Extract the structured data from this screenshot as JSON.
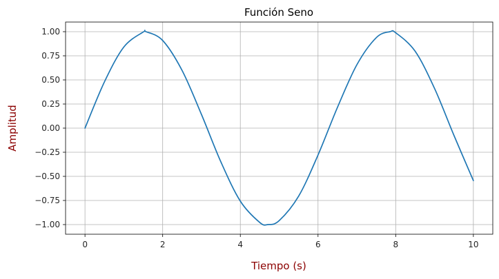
{
  "chart_data": {
    "type": "line",
    "title": "Función Seno",
    "xlabel": "Tiempo (s)",
    "ylabel": "Amplitud",
    "xlim": [
      -0.5,
      10.5
    ],
    "ylim": [
      -1.1,
      1.1
    ],
    "xticks": [
      0,
      2,
      4,
      6,
      8,
      10
    ],
    "xtick_labels": [
      "0",
      "2",
      "4",
      "6",
      "8",
      "10"
    ],
    "yticks": [
      1.0,
      0.75,
      0.5,
      0.25,
      0.0,
      -0.25,
      -0.5,
      -0.75,
      -1.0
    ],
    "ytick_labels": [
      "1.00",
      "0.75",
      "0.50",
      "0.25",
      "0.00",
      "−0.25",
      "−0.50",
      "−0.75",
      "−1.00"
    ],
    "grid": true,
    "series": [
      {
        "color": "#1f77b4",
        "x": [
          0,
          0.5,
          1,
          1.5,
          1.571,
          2,
          2.5,
          3,
          3.5,
          4,
          4.5,
          4.712,
          5,
          5.5,
          6,
          6.5,
          7,
          7.5,
          7.854,
          8,
          8.5,
          9,
          9.5,
          10
        ],
        "y": [
          0,
          0.479,
          0.841,
          0.997,
          1.0,
          0.909,
          0.598,
          0.141,
          -0.351,
          -0.757,
          -0.978,
          -1.0,
          -0.959,
          -0.706,
          -0.279,
          0.215,
          0.657,
          0.938,
          1.0,
          0.989,
          0.798,
          0.412,
          -0.075,
          -0.544
        ]
      }
    ],
    "colors": {
      "axis_label": "#8b0000",
      "grid": "#b0b0b0",
      "line": "#1f77b4"
    }
  }
}
